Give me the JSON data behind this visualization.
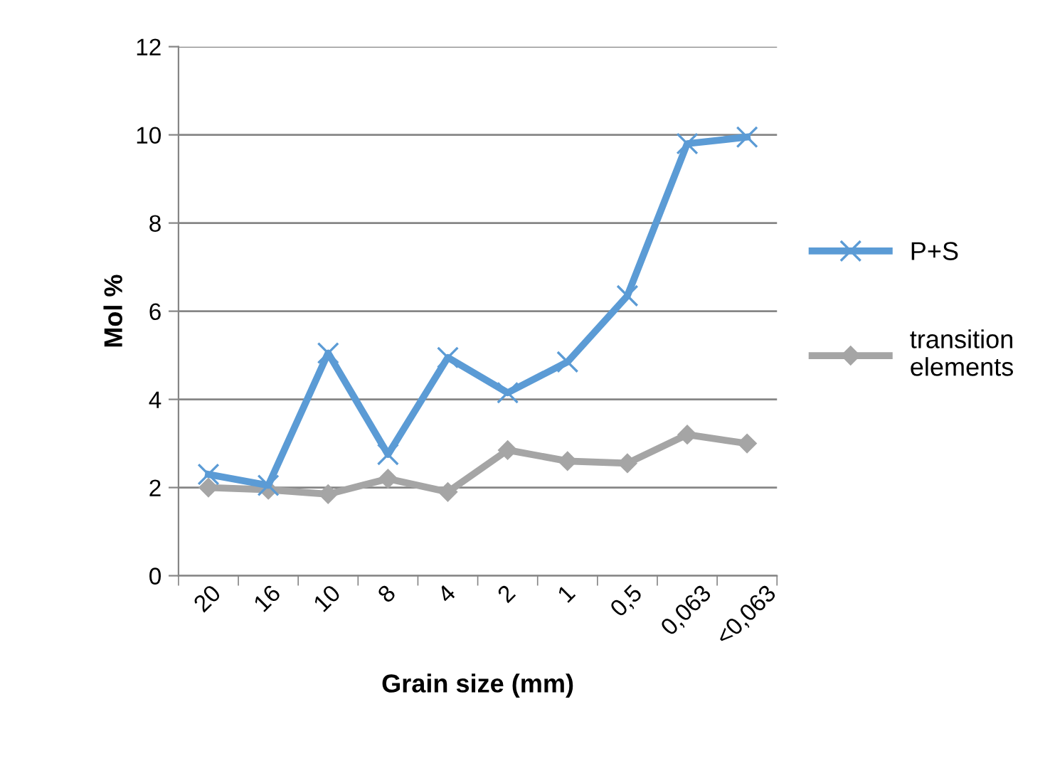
{
  "chart_data": {
    "type": "line",
    "xlabel": "Grain size (mm)",
    "ylabel": "Mol %",
    "categories": [
      "20",
      "16",
      "10",
      "8",
      "4",
      "2",
      "1",
      "0,5",
      "0,063",
      "<0,063"
    ],
    "series": [
      {
        "name": "P+S",
        "color": "#5b9bd5",
        "marker": "cross",
        "values": [
          2.3,
          2.05,
          5.05,
          2.75,
          4.95,
          4.15,
          4.85,
          6.35,
          9.8,
          9.95
        ]
      },
      {
        "name": "transition elements",
        "color": "#a5a5a5",
        "marker": "diamond",
        "values": [
          2.0,
          1.95,
          1.85,
          2.2,
          1.9,
          2.85,
          2.6,
          2.55,
          3.2,
          3.0
        ]
      }
    ],
    "ylim": [
      0,
      12
    ],
    "yticks": [
      0,
      2,
      4,
      6,
      8,
      10,
      12
    ],
    "grid": "y",
    "legend": "right",
    "line_style": "solid"
  }
}
